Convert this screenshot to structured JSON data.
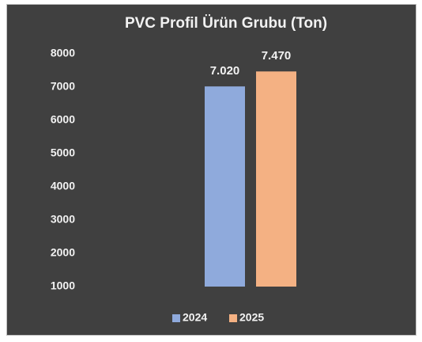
{
  "chart_data": {
    "type": "bar",
    "title": "PVC Profil Ürün Grubu (Ton)",
    "categories": [
      null
    ],
    "series": [
      {
        "name": "2024",
        "color": "#8faadc",
        "values": [
          7020
        ],
        "value_labels": [
          "7.020"
        ]
      },
      {
        "name": "2025",
        "color": "#f4b183",
        "values": [
          7470
        ],
        "value_labels": [
          "7.470"
        ]
      }
    ],
    "ylim": [
      1000,
      8000
    ],
    "yticks": [
      1000,
      2000,
      3000,
      4000,
      5000,
      6000,
      7000,
      8000
    ],
    "grid": false,
    "legend": "bottom"
  }
}
